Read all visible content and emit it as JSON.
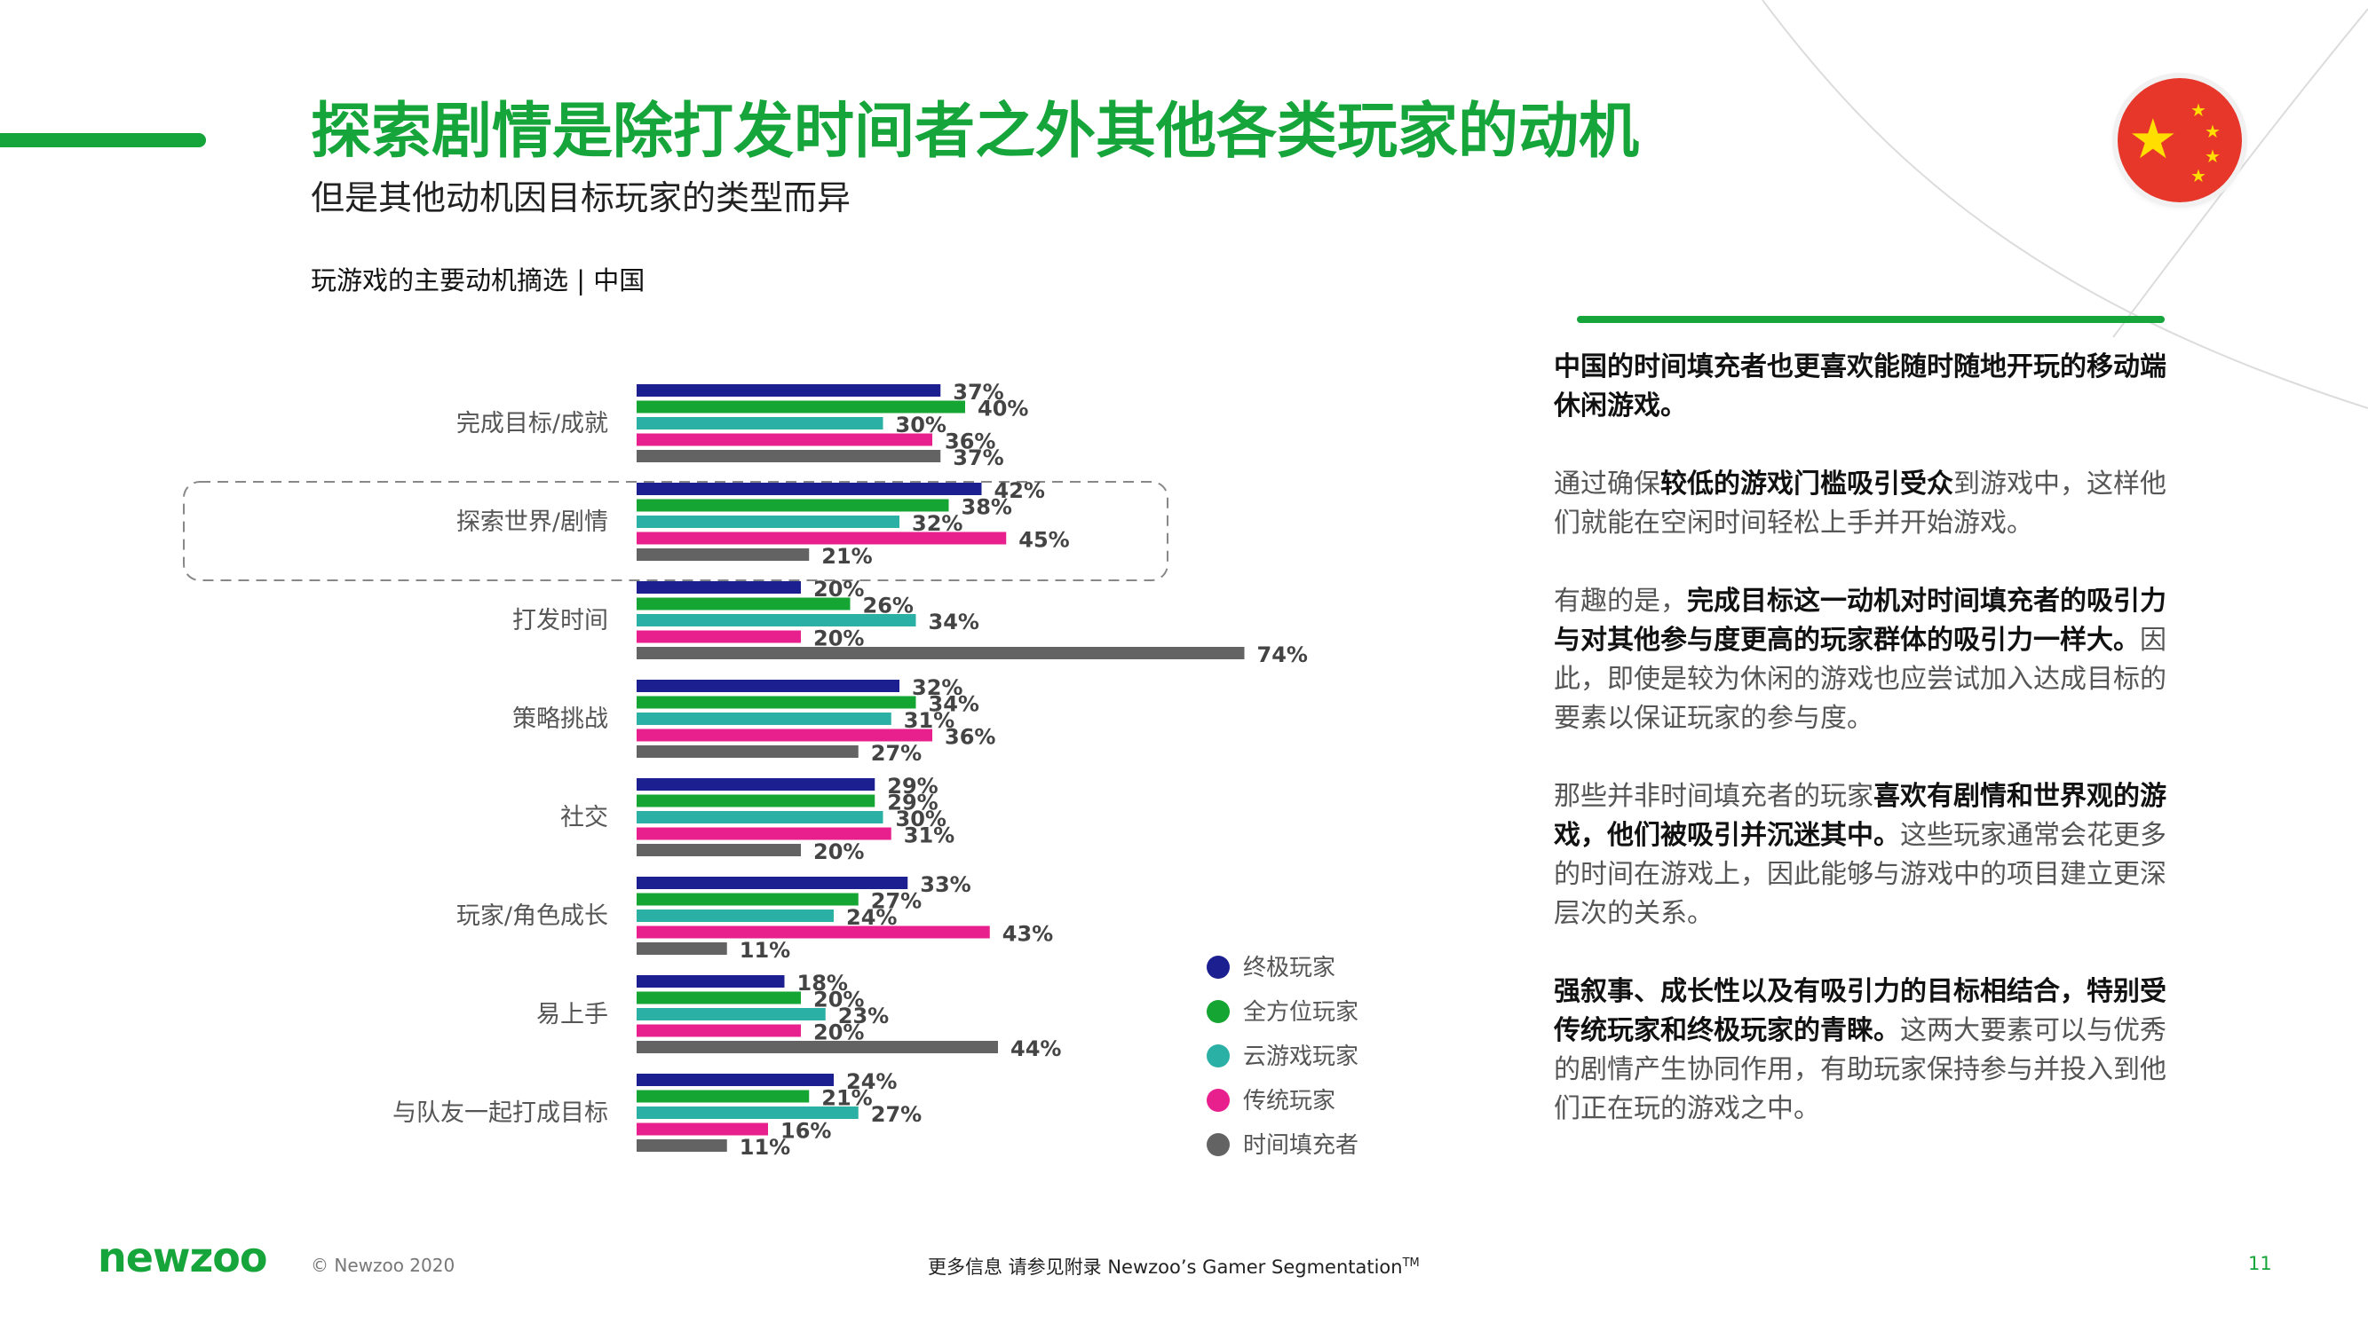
{
  "header": {
    "title": "探索剧情是除打发时间者之外其他各类玩家的动机",
    "subtitle": "但是其他动机因目标玩家的类型而异"
  },
  "flag": {
    "country": "中国",
    "icon": "china-flag-icon"
  },
  "colors": {
    "accent": "#16a53a",
    "series": [
      "#1c1f8f",
      "#15a532",
      "#2bb0a5",
      "#e8208e",
      "#636363"
    ]
  },
  "chart_data": {
    "type": "bar",
    "orientation": "horizontal",
    "title": "玩游戏的主要动机摘选 | 中国",
    "categories": [
      "完成目标/成就",
      "探索世界/剧情",
      "打发时间",
      "策略挑战",
      "社交",
      "玩家/角色成长",
      "易上手",
      "与队友一起打成目标"
    ],
    "highlighted_category": "探索世界/剧情",
    "series": [
      {
        "name": "终极玩家",
        "values": [
          37,
          42,
          20,
          32,
          29,
          33,
          18,
          24
        ]
      },
      {
        "name": "全方位玩家",
        "values": [
          40,
          38,
          26,
          34,
          29,
          27,
          20,
          21
        ]
      },
      {
        "name": "云游戏玩家",
        "values": [
          30,
          32,
          34,
          31,
          30,
          24,
          23,
          27
        ]
      },
      {
        "name": "传统玩家",
        "values": [
          36,
          45,
          20,
          36,
          31,
          43,
          20,
          16
        ]
      },
      {
        "name": "时间填充者",
        "values": [
          37,
          21,
          74,
          27,
          20,
          11,
          44,
          11
        ]
      }
    ],
    "value_suffix": "%",
    "xlim": [
      0,
      100
    ],
    "legend_position": "right",
    "grid": false
  },
  "side_panel": {
    "paragraphs": [
      [
        {
          "t": "中国的时间填充者也更喜欢能随时随地开玩的移动端休闲游戏。",
          "b": true
        }
      ],
      [
        {
          "t": "通过确保",
          "b": false
        },
        {
          "t": "较低的游戏门槛吸引受众",
          "b": true
        },
        {
          "t": "到游戏中，这样他们就能在空闲时间轻松上手并开始游戏。",
          "b": false
        }
      ],
      [
        {
          "t": "有趣的是，",
          "b": false
        },
        {
          "t": "完成目标这一动机对时间填充者的吸引力与对其他参与度更高的玩家群体的吸引力一样大。",
          "b": true
        },
        {
          "t": "因此，即使是较为休闲的游戏也应尝试加入达成目标的要素以保证玩家的参与度。",
          "b": false
        }
      ],
      [
        {
          "t": "那些并非时间填充者的玩家",
          "b": false
        },
        {
          "t": "喜欢有剧情和世界观的游戏，他们被吸引并沉迷其中。",
          "b": true
        },
        {
          "t": "这些玩家通常会花更多的时间在游戏上，因此能够与游戏中的项目建立更深层次的关系。",
          "b": false
        }
      ],
      [
        {
          "t": "强叙事、成长性以及有吸引力的目标相结合，特别受传统玩家和终极玩家的青睐。",
          "b": true
        },
        {
          "t": "这两大要素可以与优秀的剧情产生协同作用，有助玩家保持参与并投入到他们正在玩的游戏之中。",
          "b": false
        }
      ]
    ]
  },
  "footer": {
    "logo": "newzoo",
    "copyright": "© Newzoo 2020",
    "note": "更多信息 请参见附录 Newzoo’s Gamer Segmentation",
    "note_tm": "TM",
    "page": "11"
  }
}
